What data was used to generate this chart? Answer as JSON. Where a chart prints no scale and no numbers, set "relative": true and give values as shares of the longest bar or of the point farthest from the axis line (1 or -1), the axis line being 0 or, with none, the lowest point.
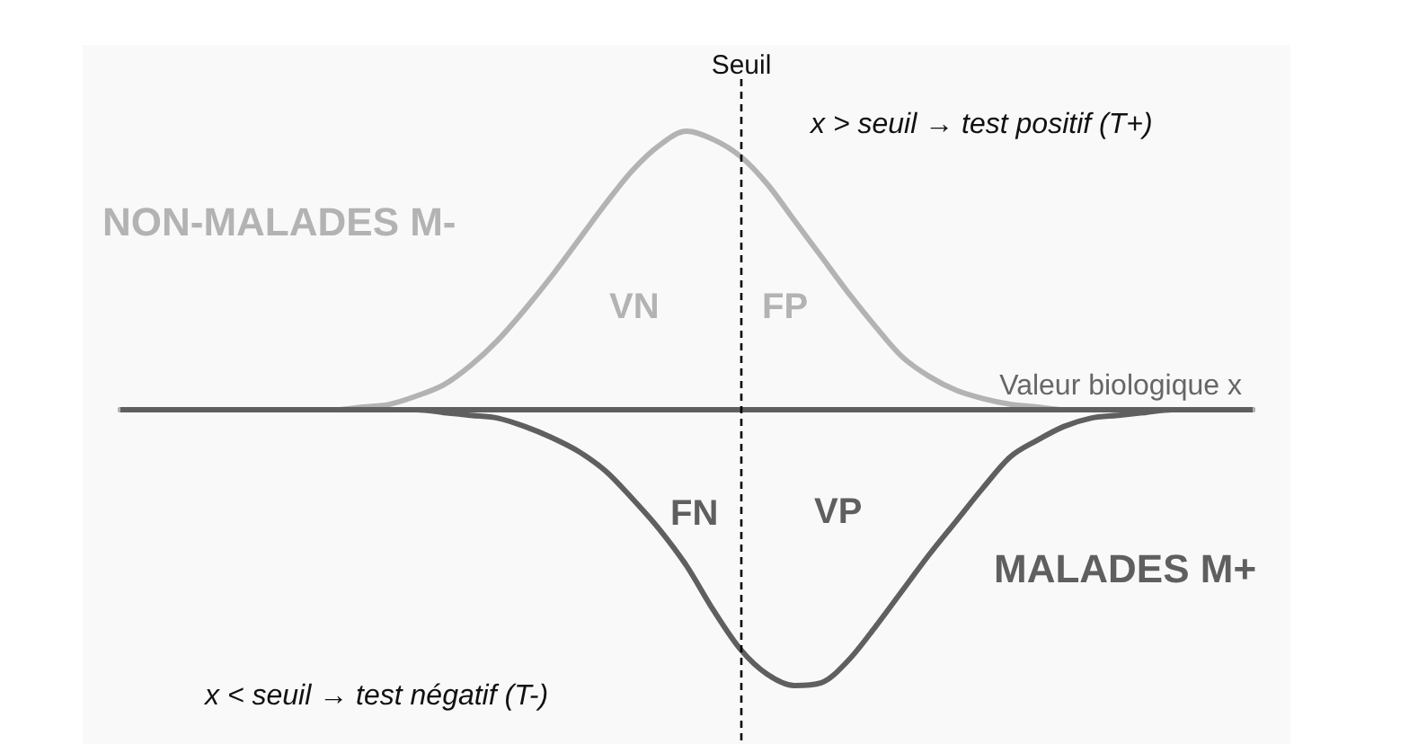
{
  "chart_data": {
    "type": "line",
    "relative": true,
    "categories": [
      null,
      null,
      null,
      null,
      null,
      null,
      null,
      null,
      null,
      null,
      null,
      null,
      null,
      null,
      null,
      null,
      null,
      null,
      null,
      null,
      null,
      null,
      null,
      null,
      null,
      null,
      null,
      null,
      null,
      null,
      null,
      null,
      null,
      null,
      null,
      null,
      null,
      null,
      null,
      null,
      null,
      null,
      null
    ],
    "series": [
      {
        "name": "NON-MALADES M-",
        "color": "#b3b3b3",
        "values": [
          0,
          0,
          0,
          0,
          0,
          0,
          0,
          0,
          0,
          0.01,
          0.02,
          0.05,
          0.09,
          0.16,
          0.25,
          0.36,
          0.48,
          0.61,
          0.74,
          0.86,
          0.95,
          1,
          0.97,
          0.91,
          0.81,
          0.68,
          0.55,
          0.42,
          0.3,
          0.19,
          0.12,
          0.07,
          0.04,
          0.02,
          0.01,
          0,
          0,
          0,
          0,
          0,
          0,
          0,
          0
        ]
      },
      {
        "name": "MALADES M+",
        "color": "#5f5f5f",
        "values": [
          0,
          0,
          0,
          0,
          0,
          0,
          0,
          0,
          0,
          0,
          0,
          0,
          -0.01,
          -0.02,
          -0.03,
          -0.06,
          -0.1,
          -0.15,
          -0.22,
          -0.32,
          -0.43,
          -0.56,
          -0.72,
          -0.86,
          -0.95,
          -0.99,
          -0.98,
          -0.9,
          -0.78,
          -0.65,
          -0.52,
          -0.4,
          -0.28,
          -0.17,
          -0.11,
          -0.06,
          -0.03,
          -0.02,
          -0.01,
          0,
          0,
          0,
          0
        ]
      }
    ],
    "xlabel": "Valeur biologique x",
    "annotations": [
      "Seuil",
      "x > seuil → test positif (T+)",
      "VN",
      "FP",
      "FN",
      "VP",
      "x < seuil → test négatif (T-)"
    ]
  }
}
